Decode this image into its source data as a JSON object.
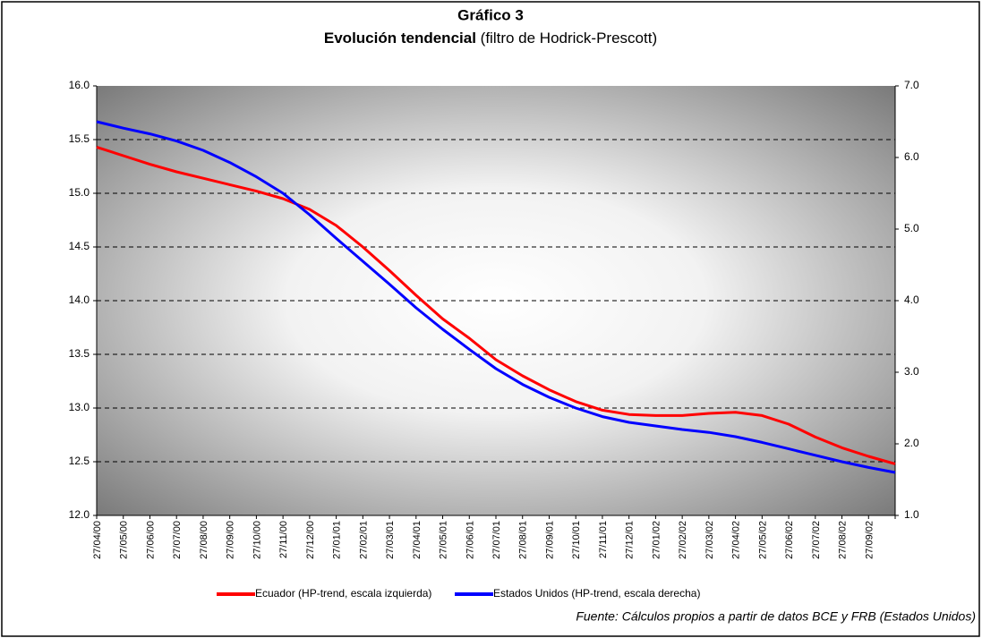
{
  "chart_data": {
    "type": "line",
    "title": "Gráfico 3",
    "subtitle": "Evolución tendencial",
    "subtitle_note": "(filtro de Hodrick-Prescott)",
    "source": "Fuente: Cálculos propios a partir de datos BCE y FRB (Estados Unidos)",
    "categories": [
      "27/04/00",
      "27/05/00",
      "27/06/00",
      "27/07/00",
      "27/08/00",
      "27/09/00",
      "27/10/00",
      "27/11/00",
      "27/12/00",
      "27/01/01",
      "27/02/01",
      "27/03/01",
      "27/04/01",
      "27/05/01",
      "27/06/01",
      "27/07/01",
      "27/08/01",
      "27/09/01",
      "27/10/01",
      "27/11/01",
      "27/12/01",
      "27/01/02",
      "27/02/02",
      "27/03/02",
      "27/04/02",
      "27/05/02",
      "27/06/02",
      "27/07/02",
      "27/08/02",
      "27/09/02",
      null
    ],
    "series": [
      {
        "name": "Ecuador (HP-trend, escala izquierda)",
        "color": "#ff0000",
        "values": [
          15.43,
          15.35,
          15.27,
          15.2,
          15.14,
          15.08,
          15.02,
          14.95,
          14.85,
          14.7,
          14.5,
          14.28,
          14.05,
          13.83,
          13.65,
          13.45,
          13.3,
          13.17,
          13.06,
          12.98,
          12.94,
          12.93,
          12.93,
          12.95,
          12.96,
          12.93,
          12.85,
          12.73,
          12.63,
          12.55,
          12.48
        ]
      },
      {
        "name": "Estados Unidos (HP-trend, escala derecha)",
        "color": "#0000ff",
        "axis": "y2",
        "values": [
          6.5,
          6.41,
          6.33,
          6.23,
          6.1,
          5.93,
          5.73,
          5.5,
          5.2,
          4.87,
          4.55,
          4.23,
          3.9,
          3.6,
          3.32,
          3.05,
          2.83,
          2.65,
          2.5,
          2.38,
          2.3,
          2.25,
          2.2,
          2.16,
          2.1,
          2.02,
          1.93,
          1.84,
          1.75,
          1.67,
          1.6
        ]
      }
    ],
    "ylim": [
      12,
      16
    ],
    "yticks": [
      {
        "value": 12,
        "label": "12.0"
      },
      12.5,
      {
        "value": 13,
        "label": "13.0"
      },
      13.5,
      {
        "value": 14,
        "label": "14.0"
      },
      14.5,
      {
        "value": 15,
        "label": "15.0"
      },
      15.5,
      {
        "value": 16,
        "label": "16.0"
      }
    ],
    "y2lim": [
      1,
      7
    ],
    "y2ticks": [
      {
        "value": 1,
        "label": "1.0"
      },
      {
        "value": 2,
        "label": "2.0"
      },
      {
        "value": 3,
        "label": "3.0"
      },
      {
        "value": 4,
        "label": "4.0"
      },
      {
        "value": 5,
        "label": "5.0"
      },
      {
        "value": 6,
        "label": "6.0"
      },
      {
        "value": 7,
        "label": "7.0"
      }
    ],
    "grid": true
  }
}
